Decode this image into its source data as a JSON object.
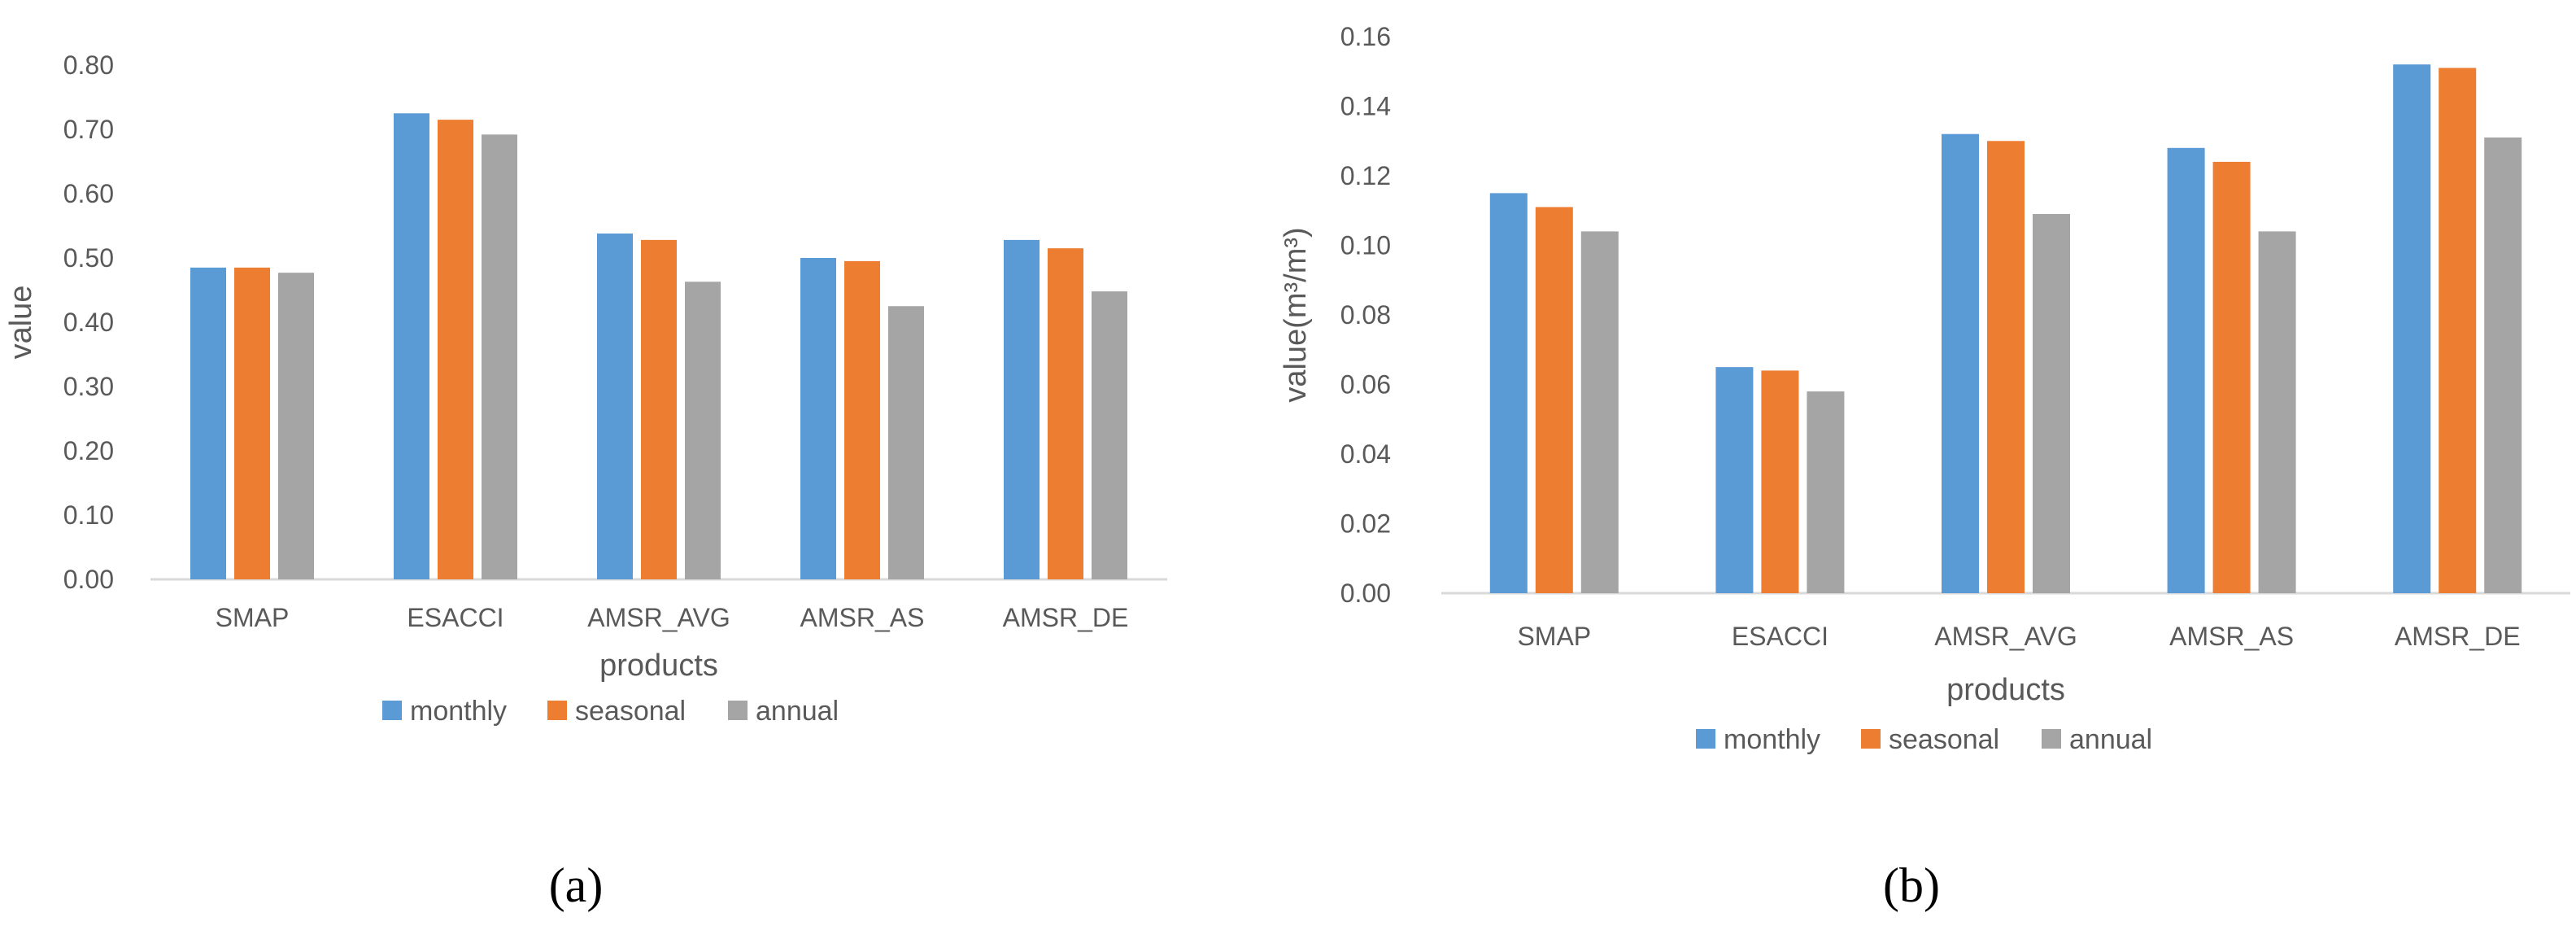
{
  "chart_data": [
    {
      "type": "bar",
      "panel_label": "(a)",
      "categories": [
        "SMAP",
        "ESACCI",
        "AMSR_AVG",
        "AMSR_AS",
        "AMSR_DE"
      ],
      "series": [
        {
          "name": "monthly",
          "color": "#5B9BD5",
          "values": [
            0.485,
            0.725,
            0.538,
            0.5,
            0.528
          ]
        },
        {
          "name": "seasonal",
          "color": "#ED7D31",
          "values": [
            0.485,
            0.715,
            0.528,
            0.495,
            0.515
          ]
        },
        {
          "name": "annual",
          "color": "#A5A5A5",
          "values": [
            0.477,
            0.692,
            0.463,
            0.425,
            0.448
          ]
        }
      ],
      "xlabel": "products",
      "ylabel": "value",
      "ylim": [
        0,
        0.8
      ],
      "yticks": [
        "0.00",
        "0.10",
        "0.20",
        "0.30",
        "0.40",
        "0.50",
        "0.60",
        "0.70",
        "0.80"
      ],
      "grid": false,
      "legend": "bottom"
    },
    {
      "type": "bar",
      "panel_label": "(b)",
      "categories": [
        "SMAP",
        "ESACCI",
        "AMSR_AVG",
        "AMSR_AS",
        "AMSR_DE"
      ],
      "series": [
        {
          "name": "monthly",
          "color": "#5B9BD5",
          "values": [
            0.115,
            0.065,
            0.132,
            0.128,
            0.152
          ]
        },
        {
          "name": "seasonal",
          "color": "#ED7D31",
          "values": [
            0.111,
            0.064,
            0.13,
            0.124,
            0.151
          ]
        },
        {
          "name": "annual",
          "color": "#A5A5A5",
          "values": [
            0.104,
            0.058,
            0.109,
            0.104,
            0.131
          ]
        }
      ],
      "xlabel": "products",
      "ylabel": "value(m³/m³)",
      "ylim": [
        0,
        0.16
      ],
      "yticks": [
        "0.00",
        "0.02",
        "0.04",
        "0.06",
        "0.08",
        "0.10",
        "0.12",
        "0.14",
        "0.16"
      ],
      "grid": false,
      "legend": "bottom"
    }
  ]
}
